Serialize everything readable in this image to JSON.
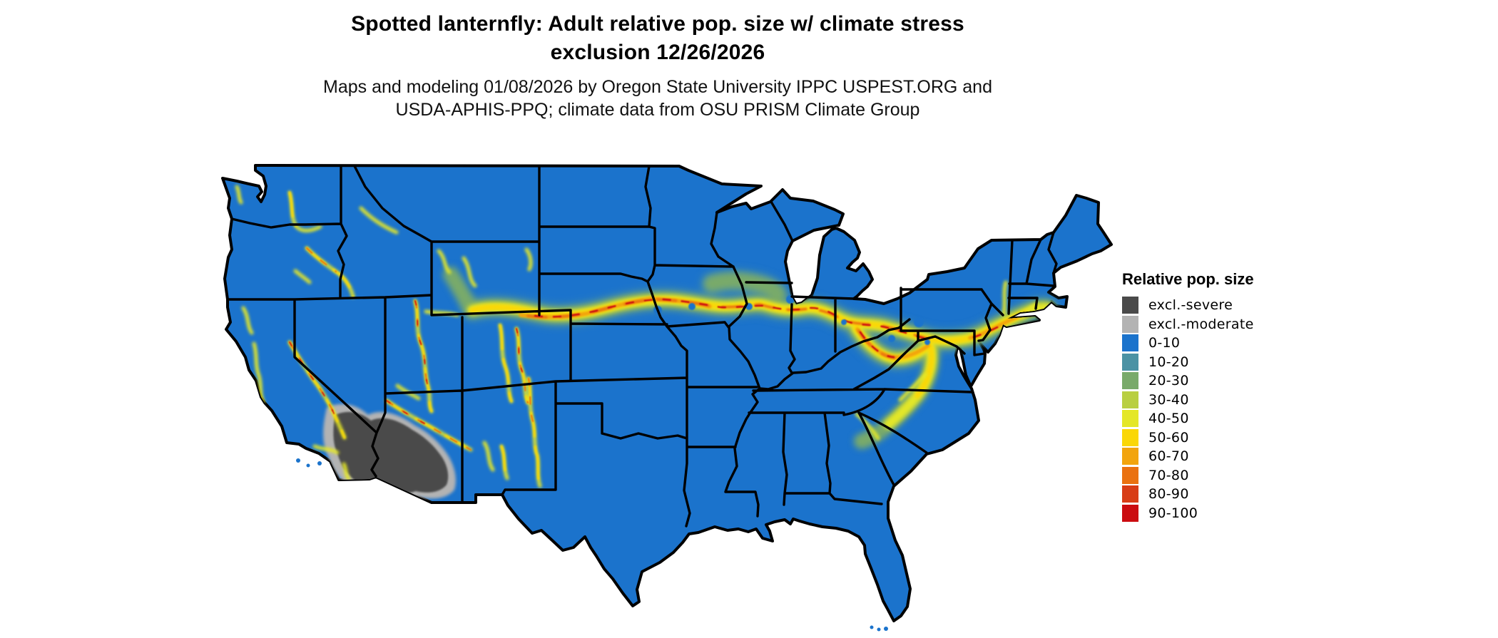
{
  "title": {
    "line1": "Spotted lanternfly: Adult relative pop. size w/ climate stress",
    "line2": "exclusion 12/26/2026"
  },
  "subtitle": {
    "line1": "Maps and modeling 01/08/2026 by Oregon State University IPPC USPEST.ORG and",
    "line2": "USDA-APHIS-PPQ; climate data from OSU PRISM Climate Group"
  },
  "legend": {
    "title": "Relative pop. size",
    "items": [
      {
        "label": "excl.-severe",
        "color": "#4a4a4a"
      },
      {
        "label": "excl.-moderate",
        "color": "#b3b3b3"
      },
      {
        "label": "0-10",
        "color": "#1b73cc"
      },
      {
        "label": "10-20",
        "color": "#4b92a4"
      },
      {
        "label": "20-30",
        "color": "#79aa6a"
      },
      {
        "label": "30-40",
        "color": "#b9cf41"
      },
      {
        "label": "40-50",
        "color": "#e4e728"
      },
      {
        "label": "50-60",
        "color": "#fad706"
      },
      {
        "label": "60-70",
        "color": "#f2a40d"
      },
      {
        "label": "70-80",
        "color": "#ea7110"
      },
      {
        "label": "80-90",
        "color": "#d83d16"
      },
      {
        "label": "90-100",
        "color": "#cb0c10"
      }
    ]
  },
  "map": {
    "border_color": "#000000",
    "water_color": "#ffffff"
  }
}
